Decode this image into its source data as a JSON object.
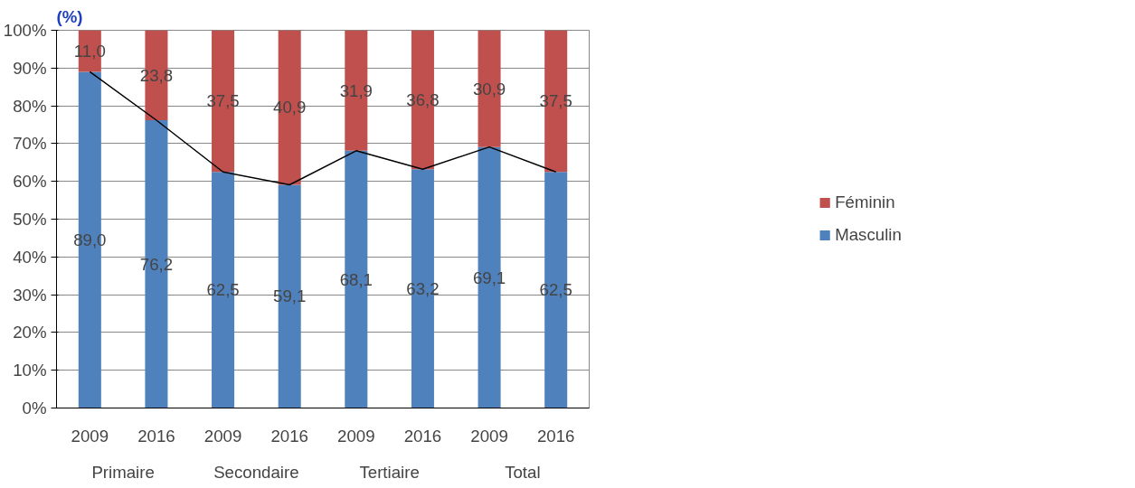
{
  "chart_data": {
    "type": "bar",
    "stacked": true,
    "categories": [
      "2009",
      "2016",
      "2009",
      "2016",
      "2009",
      "2016",
      "2009",
      "2016"
    ],
    "series": [
      {
        "name": "Masculin",
        "color": "#4f81bd",
        "values": [
          89.0,
          76.2,
          62.5,
          59.1,
          68.1,
          63.2,
          69.1,
          62.5
        ],
        "value_labels": [
          "89,0",
          "76,2",
          "62,5",
          "59,1",
          "68,1",
          "63,2",
          "69,1",
          "62,5"
        ]
      },
      {
        "name": "Féminin",
        "color": "#c0504d",
        "values": [
          11.0,
          23.8,
          37.5,
          40.9,
          31.9,
          36.8,
          30.9,
          37.5
        ],
        "value_labels": [
          "11,0",
          "23,8",
          "37,5",
          "40,9",
          "31,9",
          "36,8",
          "30,9",
          "37,5"
        ]
      },
      {
        "type": "line",
        "color": "#000000",
        "values": [
          89.0,
          76.2,
          62.5,
          59.1,
          68.1,
          63.2,
          69.1,
          62.5
        ]
      }
    ],
    "ylim": [
      0,
      100
    ],
    "yticks": [
      {
        "value": 0,
        "label": "0%"
      },
      {
        "value": 10,
        "label": "10%"
      },
      {
        "value": 20,
        "label": "20%"
      },
      {
        "value": 30,
        "label": "30%"
      },
      {
        "value": 40,
        "label": "40%"
      },
      {
        "value": 50,
        "label": "50%"
      },
      {
        "value": 60,
        "label": "60%"
      },
      {
        "value": 70,
        "label": "70%"
      },
      {
        "value": 80,
        "label": "80%"
      },
      {
        "value": 90,
        "label": "90%"
      },
      {
        "value": 100,
        "label": "100%"
      }
    ],
    "grid": "y",
    "legend": "right",
    "annotations": [
      "(%)",
      "Primaire",
      "Secondaire",
      "Tertiaire",
      "Total"
    ]
  }
}
